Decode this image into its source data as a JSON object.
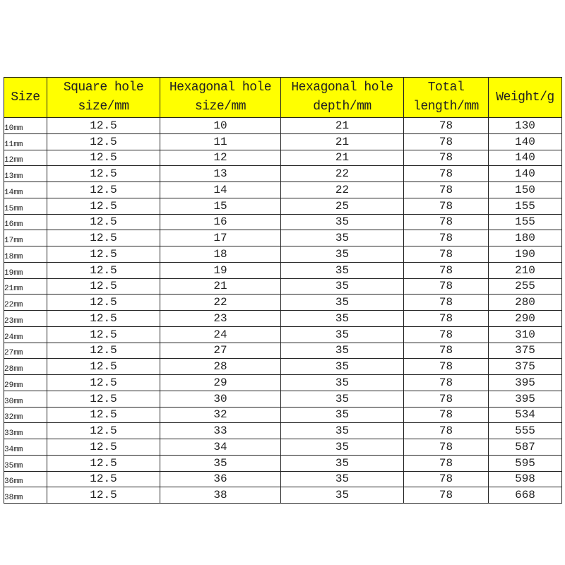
{
  "table": {
    "header_color": "#ffff00",
    "columns": [
      "Size",
      "Square hole size/mm",
      "Hexagonal hole size/mm",
      "Hexagonal hole depth/mm",
      "Total length/mm",
      "Weight/g"
    ],
    "rows": [
      [
        "10mm",
        "12.5",
        "10",
        "21",
        "78",
        "130"
      ],
      [
        "11mm",
        "12.5",
        "11",
        "21",
        "78",
        "140"
      ],
      [
        "12mm",
        "12.5",
        "12",
        "21",
        "78",
        "140"
      ],
      [
        "13mm",
        "12.5",
        "13",
        "22",
        "78",
        "140"
      ],
      [
        "14mm",
        "12.5",
        "14",
        "22",
        "78",
        "150"
      ],
      [
        "15mm",
        "12.5",
        "15",
        "25",
        "78",
        "155"
      ],
      [
        "16mm",
        "12.5",
        "16",
        "35",
        "78",
        "155"
      ],
      [
        "17mm",
        "12.5",
        "17",
        "35",
        "78",
        "180"
      ],
      [
        "18mm",
        "12.5",
        "18",
        "35",
        "78",
        "190"
      ],
      [
        "19mm",
        "12.5",
        "19",
        "35",
        "78",
        "210"
      ],
      [
        "21mm",
        "12.5",
        "21",
        "35",
        "78",
        "255"
      ],
      [
        "22mm",
        "12.5",
        "22",
        "35",
        "78",
        "280"
      ],
      [
        "23mm",
        "12.5",
        "23",
        "35",
        "78",
        "290"
      ],
      [
        "24mm",
        "12.5",
        "24",
        "35",
        "78",
        "310"
      ],
      [
        "27mm",
        "12.5",
        "27",
        "35",
        "78",
        "375"
      ],
      [
        "28mm",
        "12.5",
        "28",
        "35",
        "78",
        "375"
      ],
      [
        "29mm",
        "12.5",
        "29",
        "35",
        "78",
        "395"
      ],
      [
        "30mm",
        "12.5",
        "30",
        "35",
        "78",
        "395"
      ],
      [
        "32mm",
        "12.5",
        "32",
        "35",
        "78",
        "534"
      ],
      [
        "33mm",
        "12.5",
        "33",
        "35",
        "78",
        "555"
      ],
      [
        "34mm",
        "12.5",
        "34",
        "35",
        "78",
        "587"
      ],
      [
        "35mm",
        "12.5",
        "35",
        "35",
        "78",
        "595"
      ],
      [
        "36mm",
        "12.5",
        "36",
        "35",
        "78",
        "598"
      ],
      [
        "38mm",
        "12.5",
        "38",
        "35",
        "78",
        "668"
      ]
    ]
  }
}
